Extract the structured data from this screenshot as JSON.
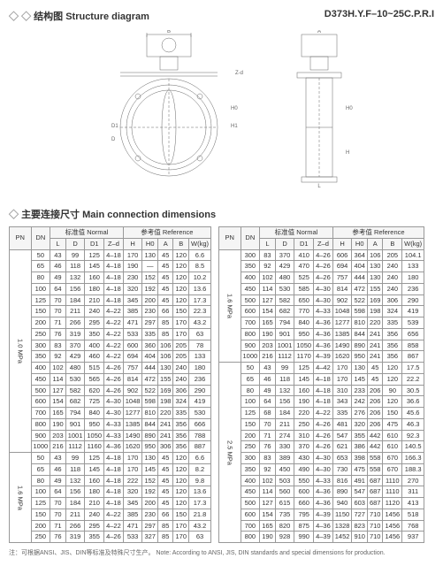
{
  "header": {
    "title_cn": "结构图",
    "title_en": "Structure diagram",
    "product_code": "D373H.Y.F–10~25C.P.R.I"
  },
  "section2": {
    "title_cn": "主要连接尺寸",
    "title_en": "Main connection dimensions"
  },
  "table_headers": {
    "normal_cn": "标准值",
    "normal_en": "Normal",
    "ref_cn": "参考值",
    "ref_en": "Reference",
    "cols": [
      "PN",
      "DN",
      "L",
      "D",
      "D1",
      "Z–d",
      "H",
      "H0",
      "A",
      "B",
      "W(kg)"
    ]
  },
  "table1": {
    "groups": [
      {
        "pn": "1.0\nMPa",
        "rows": [
          [
            "50",
            "43",
            "99",
            "125",
            "4–18",
            "170",
            "130",
            "45",
            "120",
            "6.6"
          ],
          [
            "65",
            "46",
            "118",
            "145",
            "4–18",
            "190",
            "—",
            "45",
            "120",
            "8.5"
          ],
          [
            "80",
            "49",
            "132",
            "160",
            "4–18",
            "230",
            "152",
            "45",
            "120",
            "10.2"
          ],
          [
            "100",
            "64",
            "156",
            "180",
            "4–18",
            "320",
            "192",
            "45",
            "120",
            "13.6"
          ],
          [
            "125",
            "70",
            "184",
            "210",
            "4–18",
            "345",
            "200",
            "45",
            "120",
            "17.3"
          ],
          [
            "150",
            "70",
            "211",
            "240",
            "4–22",
            "385",
            "230",
            "66",
            "150",
            "22.3"
          ],
          [
            "200",
            "71",
            "266",
            "295",
            "4–22",
            "471",
            "297",
            "85",
            "170",
            "43.2"
          ],
          [
            "250",
            "76",
            "319",
            "350",
            "4–22",
            "533",
            "335",
            "85",
            "170",
            "63"
          ],
          [
            "300",
            "83",
            "370",
            "400",
            "4–22",
            "600",
            "360",
            "106",
            "205",
            "78"
          ],
          [
            "350",
            "92",
            "429",
            "460",
            "4–22",
            "694",
            "404",
            "106",
            "205",
            "133"
          ],
          [
            "400",
            "102",
            "480",
            "515",
            "4–26",
            "757",
            "444",
            "130",
            "240",
            "180"
          ],
          [
            "450",
            "114",
            "530",
            "565",
            "4–26",
            "814",
            "472",
            "155",
            "240",
            "236"
          ],
          [
            "500",
            "127",
            "582",
            "620",
            "4–26",
            "902",
            "522",
            "169",
            "306",
            "290"
          ],
          [
            "600",
            "154",
            "682",
            "725",
            "4–30",
            "1048",
            "598",
            "198",
            "324",
            "419"
          ],
          [
            "700",
            "165",
            "794",
            "840",
            "4–30",
            "1277",
            "810",
            "220",
            "335",
            "530"
          ],
          [
            "800",
            "190",
            "901",
            "950",
            "4–33",
            "1385",
            "844",
            "241",
            "356",
            "666"
          ],
          [
            "900",
            "203",
            "1001",
            "1050",
            "4–33",
            "1490",
            "890",
            "241",
            "356",
            "788"
          ],
          [
            "1000",
            "216",
            "1112",
            "1160",
            "4–36",
            "1620",
            "950",
            "306",
            "356",
            "887"
          ]
        ]
      },
      {
        "pn": "1.6\nMPa",
        "rows": [
          [
            "50",
            "43",
            "99",
            "125",
            "4–18",
            "170",
            "130",
            "45",
            "120",
            "6.6"
          ],
          [
            "65",
            "46",
            "118",
            "145",
            "4–18",
            "170",
            "145",
            "45",
            "120",
            "8.2"
          ],
          [
            "80",
            "49",
            "132",
            "160",
            "4–18",
            "222",
            "152",
            "45",
            "120",
            "9.8"
          ],
          [
            "100",
            "64",
            "156",
            "180",
            "4–18",
            "320",
            "192",
            "45",
            "120",
            "13.6"
          ],
          [
            "125",
            "70",
            "184",
            "210",
            "4–18",
            "345",
            "200",
            "45",
            "120",
            "17.3"
          ],
          [
            "150",
            "70",
            "211",
            "240",
            "4–22",
            "385",
            "230",
            "66",
            "150",
            "21.8"
          ],
          [
            "200",
            "71",
            "266",
            "295",
            "4–22",
            "471",
            "297",
            "85",
            "170",
            "43.2"
          ],
          [
            "250",
            "76",
            "319",
            "355",
            "4–26",
            "533",
            "327",
            "85",
            "170",
            "63"
          ]
        ]
      }
    ]
  },
  "table2": {
    "groups": [
      {
        "pn": "1.6\nMPa",
        "rows": [
          [
            "300",
            "83",
            "370",
            "410",
            "4–26",
            "606",
            "364",
            "106",
            "205",
            "104.1"
          ],
          [
            "350",
            "92",
            "429",
            "470",
            "4–26",
            "694",
            "404",
            "130",
            "240",
            "133"
          ],
          [
            "400",
            "102",
            "480",
            "525",
            "4–26",
            "757",
            "444",
            "130",
            "240",
            "180"
          ],
          [
            "450",
            "114",
            "530",
            "585",
            "4–30",
            "814",
            "472",
            "155",
            "240",
            "236"
          ],
          [
            "500",
            "127",
            "582",
            "650",
            "4–30",
            "902",
            "522",
            "169",
            "306",
            "290"
          ],
          [
            "600",
            "154",
            "682",
            "770",
            "4–33",
            "1048",
            "598",
            "198",
            "324",
            "419"
          ],
          [
            "700",
            "165",
            "794",
            "840",
            "4–36",
            "1277",
            "810",
            "220",
            "335",
            "539"
          ],
          [
            "800",
            "190",
            "901",
            "950",
            "4–36",
            "1385",
            "844",
            "241",
            "356",
            "656"
          ],
          [
            "900",
            "203",
            "1001",
            "1050",
            "4–36",
            "1490",
            "890",
            "241",
            "356",
            "858"
          ],
          [
            "1000",
            "216",
            "1112",
            "1170",
            "4–39",
            "1620",
            "950",
            "241",
            "356",
            "867"
          ]
        ]
      },
      {
        "pn": "2.5\nMPa",
        "rows": [
          [
            "50",
            "43",
            "99",
            "125",
            "4–42",
            "170",
            "130",
            "45",
            "120",
            "17.5"
          ],
          [
            "65",
            "46",
            "118",
            "145",
            "4–18",
            "170",
            "145",
            "45",
            "120",
            "22.2"
          ],
          [
            "80",
            "49",
            "132",
            "160",
            "4–18",
            "310",
            "233",
            "206",
            "90",
            "30.5"
          ],
          [
            "100",
            "64",
            "156",
            "190",
            "4–18",
            "343",
            "242",
            "206",
            "120",
            "36.6"
          ],
          [
            "125",
            "68",
            "184",
            "220",
            "4–22",
            "335",
            "276",
            "206",
            "150",
            "45.6"
          ],
          [
            "150",
            "70",
            "211",
            "250",
            "4–26",
            "481",
            "320",
            "206",
            "475",
            "46.3"
          ],
          [
            "200",
            "71",
            "274",
            "310",
            "4–26",
            "547",
            "355",
            "442",
            "610",
            "92.3"
          ],
          [
            "250",
            "76",
            "330",
            "370",
            "4–26",
            "621",
            "386",
            "442",
            "610",
            "140.5"
          ],
          [
            "300",
            "83",
            "389",
            "430",
            "4–30",
            "653",
            "398",
            "558",
            "670",
            "166.3"
          ],
          [
            "350",
            "92",
            "450",
            "490",
            "4–30",
            "730",
            "475",
            "558",
            "670",
            "188.3"
          ],
          [
            "400",
            "102",
            "503",
            "550",
            "4–33",
            "816",
            "491",
            "687",
            "1110",
            "270"
          ],
          [
            "450",
            "114",
            "560",
            "600",
            "4–36",
            "890",
            "547",
            "687",
            "1110",
            "311"
          ],
          [
            "500",
            "127",
            "615",
            "660",
            "4–36",
            "940",
            "603",
            "687",
            "1120",
            "413"
          ],
          [
            "600",
            "154",
            "735",
            "795",
            "4–39",
            "1150",
            "727",
            "710",
            "1456",
            "518"
          ],
          [
            "700",
            "165",
            "820",
            "875",
            "4–36",
            "1328",
            "823",
            "710",
            "1456",
            "768"
          ],
          [
            "800",
            "190",
            "928",
            "990",
            "4–39",
            "1452",
            "910",
            "710",
            "1456",
            "937"
          ]
        ]
      }
    ]
  },
  "footnote": "注：可根据ANSI、JIS、DIN等标准及特殊尺寸生产。\nNote: According to ANSI, JIS, DIN standards and special dimensions for production."
}
